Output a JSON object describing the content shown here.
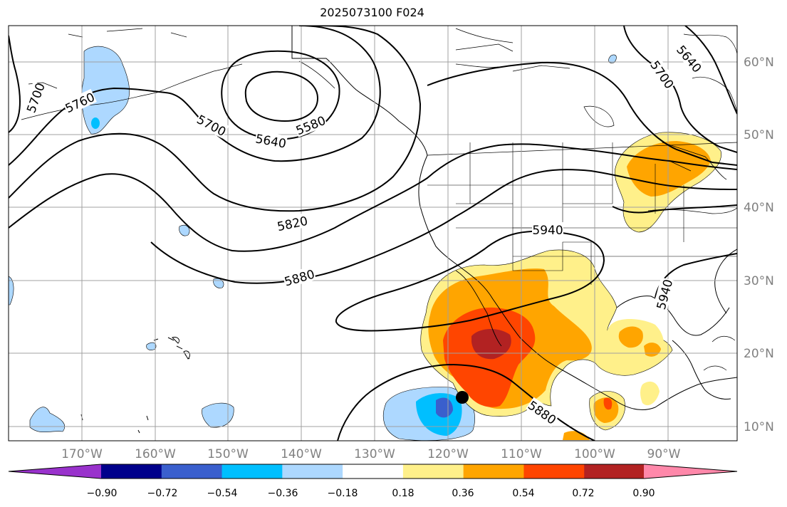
{
  "title": "2025073100 F024",
  "lon_labels": [
    "170°W",
    "160°W",
    "150°W",
    "140°W",
    "130°W",
    "120°W",
    "110°W",
    "100°W",
    "90°W"
  ],
  "lat_labels": [
    "60°N",
    "50°N",
    "40°N",
    "30°N",
    "20°N",
    "10°N"
  ],
  "contour_labels": [
    "5700",
    "5760",
    "5700",
    "5640",
    "5580",
    "5820",
    "5880",
    "5940",
    "5940",
    "5880",
    "5700",
    "5640"
  ],
  "colorbar": {
    "ticks": [
      "−0.90",
      "−0.72",
      "−0.54",
      "−0.36",
      "−0.18",
      "0.18",
      "0.36",
      "0.54",
      "0.72",
      "0.90"
    ],
    "colors": [
      "#9932cc",
      "#00008b",
      "#3a5fcd",
      "#00bfff",
      "#add8ff",
      "#ffffff",
      "#fff08a",
      "#ffa500",
      "#ff4500",
      "#b22222",
      "#ff88aa"
    ]
  },
  "marker": "filled-circle"
}
